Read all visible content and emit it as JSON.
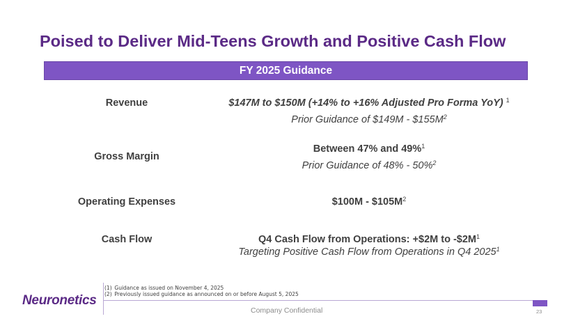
{
  "slide": {
    "title": "Poised to Deliver Mid-Teens Growth and Positive Cash Flow",
    "banner": "FY 2025 Guidance",
    "page_number": "23",
    "confidential": "Company Confidential",
    "logo": "Neuronetics"
  },
  "rows": {
    "revenue": {
      "label": "Revenue",
      "main": "$147M to $150M (+14% to +16% Adjusted Pro Forma YoY)",
      "main_sup": "1",
      "prior": "Prior Guidance of $149M - $155M",
      "prior_sup": "2"
    },
    "gross_margin": {
      "label": "Gross Margin",
      "main": "Between 47% and 49%",
      "main_sup": "1",
      "prior": "Prior Guidance of 48% - 50%",
      "prior_sup": "2"
    },
    "opex": {
      "label": "Operating Expenses",
      "main": "$100M - $105M",
      "main_sup": "2"
    },
    "cash_flow": {
      "label": "Cash Flow",
      "main": "Q4 Cash Flow from Operations: +$2M to -$2M",
      "main_sup": "1",
      "sub": "Targeting Positive Cash Flow from Operations in Q4 2025",
      "sub_sup": "1"
    }
  },
  "footnotes": [
    {
      "num": "(1)",
      "text": "Guidance as issued on November 4, 2025"
    },
    {
      "num": "(2)",
      "text": "Previously issued guidance as announced on or before August 5, 2025"
    }
  ],
  "colors": {
    "brand_purple": "#5b2a86",
    "banner_purple": "#7e55c4"
  }
}
